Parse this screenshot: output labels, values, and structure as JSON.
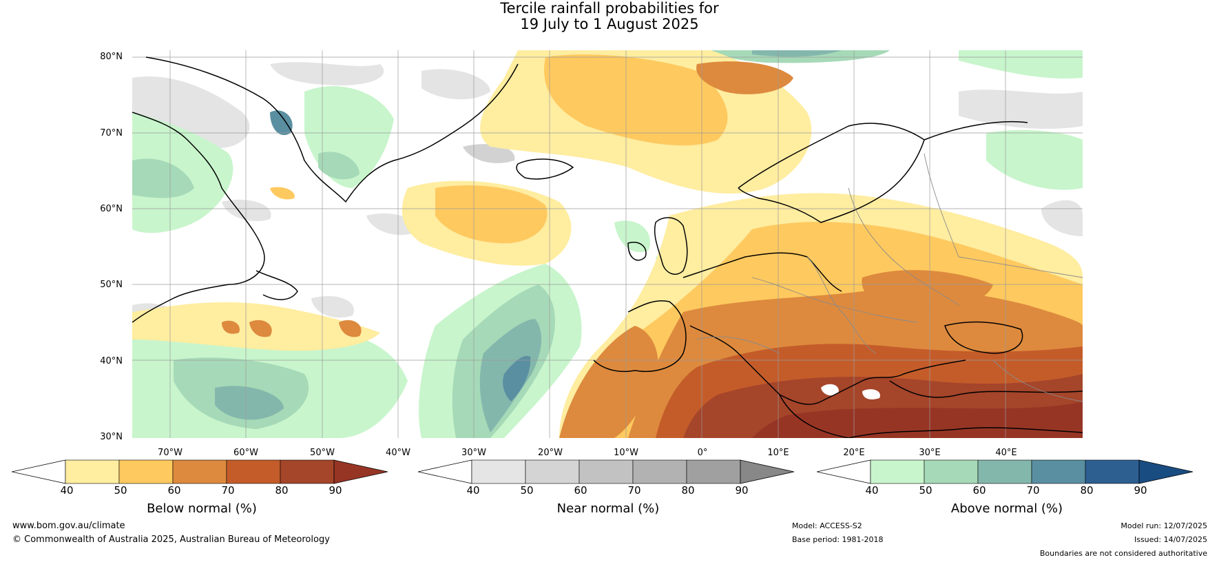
{
  "title_line1": "Tercile rainfall probabilities for",
  "title_line2": "19 July to 1 August 2025",
  "lat_labels": [
    "80°N",
    "70°N",
    "60°N",
    "50°N",
    "40°N",
    "30°N"
  ],
  "lon_labels": [
    "70°W",
    "60°W",
    "50°W",
    "40°W",
    "30°W",
    "20°W",
    "10°W",
    "0°",
    "10°E",
    "20°E",
    "30°E",
    "40°E"
  ],
  "colorbars": [
    {
      "label": "Below normal (%)",
      "ticks": [
        "40",
        "50",
        "60",
        "70",
        "80",
        "90"
      ],
      "colors": [
        "#ffffff",
        "#ffeda0",
        "#fec95f",
        "#dd8a3e",
        "#c45c2a",
        "#a5452a",
        "#973525"
      ]
    },
    {
      "label": "Near normal (%)",
      "ticks": [
        "40",
        "50",
        "60",
        "70",
        "80",
        "90"
      ],
      "colors": [
        "#ffffff",
        "#e5e5e5",
        "#d4d4d4",
        "#c2c2c2",
        "#b2b2b2",
        "#a0a0a0",
        "#888888"
      ]
    },
    {
      "label": "Above normal (%)",
      "ticks": [
        "40",
        "50",
        "60",
        "70",
        "80",
        "90"
      ],
      "colors": [
        "#ffffff",
        "#c8f5cc",
        "#a6d9b7",
        "#84b7ac",
        "#5a8fa1",
        "#2d5f91",
        "#194d82"
      ]
    }
  ],
  "footer": {
    "website": "www.bom.gov.au/climate",
    "copyright": "© Commonwealth of Australia 2025, Australian Bureau of Meteorology",
    "model": "Model: ACCESS-S2",
    "base_period": "Base period: 1981-2018",
    "model_run": "Model run: 12/07/2025",
    "issued": "Issued: 14/07/2025",
    "disclaimer": "Boundaries are not considered authoritative"
  }
}
